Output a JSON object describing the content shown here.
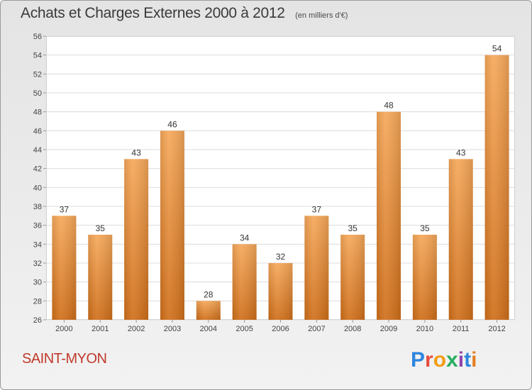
{
  "header": {
    "title": "Achats et Charges Externes 2000 à 2012",
    "subtitle": "(en milliers d'€)"
  },
  "footer": {
    "place": "SAINT-MYON",
    "logo_text": "Proxiti",
    "logo_colors": [
      "#2e86de",
      "#e74c3c",
      "#f39c12",
      "#27ae60",
      "#8e44ad",
      "#2e86de",
      "#e67e22"
    ]
  },
  "colors": {
    "bar_top": "#f6a85a",
    "bar_bottom": "#d06f1a",
    "grid": "#dcdcdc",
    "axis_text": "#444444"
  },
  "chart_data": {
    "type": "bar",
    "title": "Achats et Charges Externes 2000 à 2012",
    "subtitle": "(en milliers d'€)",
    "categories": [
      "2000",
      "2001",
      "2002",
      "2003",
      "2004",
      "2005",
      "2006",
      "2007",
      "2008",
      "2009",
      "2010",
      "2011",
      "2012"
    ],
    "values": [
      37,
      35,
      43,
      46,
      28,
      34,
      32,
      37,
      35,
      48,
      35,
      43,
      54
    ],
    "ylim": [
      26,
      56
    ],
    "yticks": [
      26,
      28,
      30,
      32,
      34,
      36,
      38,
      40,
      42,
      44,
      46,
      48,
      50,
      52,
      54,
      56
    ],
    "grid": true,
    "xlabel": "",
    "ylabel": ""
  }
}
